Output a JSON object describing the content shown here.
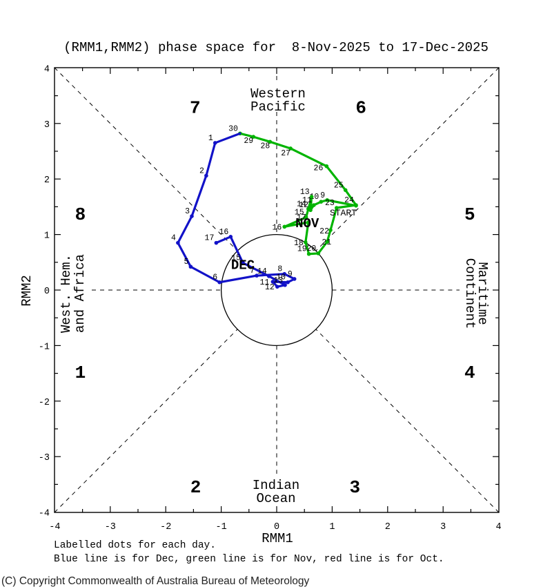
{
  "title": "(RMM1,RMM2) phase space for  8-Nov-2025 to 17-Dec-2025",
  "axes": {
    "x_label": "RMM1",
    "y_label": "RMM2",
    "x_ticks": [
      "-4",
      "-3",
      "-2",
      "-1",
      "0",
      "1",
      "2",
      "3",
      "4"
    ],
    "y_ticks": [
      "4",
      "3",
      "2",
      "1",
      "0",
      "-1",
      "-2",
      "-3",
      "-4"
    ],
    "xlim": [
      -4,
      4
    ],
    "ylim": [
      -4,
      4
    ]
  },
  "phase_labels": [
    "1",
    "2",
    "3",
    "4",
    "5",
    "6",
    "7",
    "8"
  ],
  "regions": {
    "top": [
      "Western",
      "Pacific"
    ],
    "bottom": [
      "Indian",
      "Ocean"
    ],
    "left": [
      "West. Hem.",
      "and Africa"
    ],
    "right": [
      "Maritime",
      "Continent"
    ]
  },
  "footnotes": [
    "Labelled dots for each day.",
    "Blue line is for Dec, green line is for Nov, red line is for Oct."
  ],
  "copyright": "(C) Copyright Commonwealth of Australia Bureau of Meteorology",
  "colors": {
    "nov": "#00b400",
    "dec": "#1212c8",
    "axis": "#000000"
  },
  "chart_data": {
    "type": "line",
    "title": "(RMM1,RMM2) phase space for  8-Nov-2025 to 17-Dec-2025",
    "xlabel": "RMM1",
    "ylabel": "RMM2",
    "xlim": [
      -4,
      4
    ],
    "ylim": [
      -4,
      4
    ],
    "grid": false,
    "unit_circle_radius": 1,
    "start_label": "START",
    "series": [
      {
        "name": "Nov",
        "month_label": "NOV",
        "color_key": "nov",
        "label_pos": [
          0.55,
          1.13
        ],
        "points": [
          {
            "day": 8,
            "rmm1": 1.43,
            "rmm2": 1.52
          },
          {
            "day": 9,
            "rmm1": 0.91,
            "rmm2": 1.62
          },
          {
            "day": 10,
            "rmm1": 0.8,
            "rmm2": 1.59
          },
          {
            "day": 11,
            "rmm1": 0.67,
            "rmm2": 1.53
          },
          {
            "day": 12,
            "rmm1": 0.61,
            "rmm2": 1.44
          },
          {
            "day": 13,
            "rmm1": 0.63,
            "rmm2": 1.68
          },
          {
            "day": 14,
            "rmm1": 0.57,
            "rmm2": 1.46
          },
          {
            "day": 15,
            "rmm1": 0.53,
            "rmm2": 1.31
          },
          {
            "day": 16,
            "rmm1": 0.14,
            "rmm2": 1.14
          },
          {
            "day": 17,
            "rmm1": 0.57,
            "rmm2": 1.22
          },
          {
            "day": 18,
            "rmm1": 0.52,
            "rmm2": 0.86
          },
          {
            "day": 19,
            "rmm1": 0.58,
            "rmm2": 0.65
          },
          {
            "day": 20,
            "rmm1": 0.75,
            "rmm2": 0.66
          },
          {
            "day": 21,
            "rmm1": 0.91,
            "rmm2": 0.87
          },
          {
            "day": 22,
            "rmm1": 0.97,
            "rmm2": 1.08
          },
          {
            "day": 23,
            "rmm1": 1.08,
            "rmm2": 1.48
          },
          {
            "day": 24,
            "rmm1": 1.43,
            "rmm2": 1.53
          },
          {
            "day": 25,
            "rmm1": 1.24,
            "rmm2": 1.8
          },
          {
            "day": 26,
            "rmm1": 0.9,
            "rmm2": 2.23
          },
          {
            "day": 27,
            "rmm1": 0.25,
            "rmm2": 2.55
          },
          {
            "day": 28,
            "rmm1": -0.12,
            "rmm2": 2.67
          },
          {
            "day": 29,
            "rmm1": -0.42,
            "rmm2": 2.76
          },
          {
            "day": 30,
            "rmm1": -0.66,
            "rmm2": 2.82
          }
        ]
      },
      {
        "name": "Dec",
        "month_label": "DEC",
        "color_key": "dec",
        "label_pos": [
          -0.61,
          0.38
        ],
        "points": [
          {
            "day": 1,
            "rmm1": -1.11,
            "rmm2": 2.65
          },
          {
            "day": 2,
            "rmm1": -1.27,
            "rmm2": 2.06
          },
          {
            "day": 3,
            "rmm1": -1.53,
            "rmm2": 1.33
          },
          {
            "day": 4,
            "rmm1": -1.78,
            "rmm2": 0.85
          },
          {
            "day": 5,
            "rmm1": -1.55,
            "rmm2": 0.42
          },
          {
            "day": 6,
            "rmm1": -1.03,
            "rmm2": 0.14
          },
          {
            "day": 7,
            "rmm1": -0.36,
            "rmm2": 0.26
          },
          {
            "day": 8,
            "rmm1": 0.14,
            "rmm2": 0.29
          },
          {
            "day": 9,
            "rmm1": 0.32,
            "rmm2": 0.2
          },
          {
            "day": 10,
            "rmm1": 0.2,
            "rmm2": 0.14
          },
          {
            "day": 11,
            "rmm1": -0.07,
            "rmm2": 0.15
          },
          {
            "day": 12,
            "rmm1": 0.01,
            "rmm2": 0.06
          },
          {
            "day": 13,
            "rmm1": 0.15,
            "rmm2": 0.09
          },
          {
            "day": 14,
            "rmm1": -0.14,
            "rmm2": 0.25
          },
          {
            "day": 15,
            "rmm1": -0.61,
            "rmm2": 0.49
          },
          {
            "day": 16,
            "rmm1": -0.83,
            "rmm2": 0.96
          },
          {
            "day": 17,
            "rmm1": -1.09,
            "rmm2": 0.85
          }
        ]
      }
    ]
  }
}
